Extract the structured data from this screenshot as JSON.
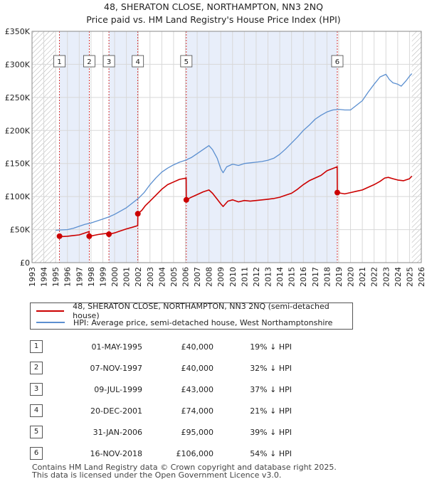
{
  "title_line1": "48, SHERATON CLOSE, NORTHAMPTON, NN3 2NQ",
  "title_line2": "Price paid vs. HM Land Registry's House Price Index (HPI)",
  "colors": {
    "red": "#cc0000",
    "blue": "#5b8fd0",
    "shade": "#e8eefa",
    "grid": "#d8d8d8",
    "hatch": "#b0b0b0"
  },
  "chart_data": {
    "type": "line",
    "x_range": [
      1993,
      2026
    ],
    "y_range": [
      0,
      350000
    ],
    "y_ticks": [
      0,
      50000,
      100000,
      150000,
      200000,
      250000,
      300000,
      350000
    ],
    "y_tick_labels": [
      "£0",
      "£50K",
      "£100K",
      "£150K",
      "£200K",
      "£250K",
      "£300K",
      "£350K"
    ],
    "x_ticks": [
      1993,
      1994,
      1995,
      1996,
      1997,
      1998,
      1999,
      2000,
      2001,
      2002,
      2003,
      2004,
      2005,
      2006,
      2007,
      2008,
      2009,
      2010,
      2011,
      2012,
      2013,
      2014,
      2015,
      2016,
      2017,
      2018,
      2019,
      2020,
      2021,
      2022,
      2023,
      2024,
      2025,
      2026
    ],
    "x_tick_labels": [
      "1993",
      "1994",
      "1995",
      "1996",
      "1997",
      "1998",
      "1999",
      "2000",
      "2001",
      "2002",
      "2003",
      "2004",
      "2005",
      "2006",
      "2007",
      "2008",
      "2009",
      "2010",
      "2011",
      "2012",
      "2013",
      "2014",
      "2015",
      "2016",
      "2017",
      "2018",
      "2019",
      "2020",
      "2021",
      "2022",
      "2023",
      "2024",
      "2025",
      "2026"
    ],
    "data_start": 1995.0,
    "data_end": 2025.2,
    "shaded_spans": [
      [
        1995.33,
        1997.85
      ],
      [
        1999.52,
        2001.97
      ],
      [
        2006.08,
        2018.88
      ]
    ],
    "series": [
      {
        "name": "48, SHERATON CLOSE, NORTHAMPTON, NN3 2NQ (semi-detached house)",
        "color": "red",
        "x": [
          1995.33,
          1995.6,
          1996.0,
          1996.5,
          1997.0,
          1997.5,
          1997.84,
          1997.85,
          1998.2,
          1998.6,
          1999.0,
          1999.3,
          1999.51,
          1999.52,
          2000.0,
          2000.5,
          2001.0,
          2001.5,
          2001.96,
          2001.97,
          2002.3,
          2002.6,
          2003.0,
          2003.5,
          2004.0,
          2004.5,
          2005.0,
          2005.5,
          2006.07,
          2006.08,
          2006.5,
          2007.0,
          2007.5,
          2008.0,
          2008.3,
          2008.7,
          2009.0,
          2009.2,
          2009.6,
          2010.0,
          2010.5,
          2011.0,
          2011.5,
          2012.0,
          2012.5,
          2013.0,
          2013.5,
          2014.0,
          2014.5,
          2015.0,
          2015.5,
          2016.0,
          2016.5,
          2017.0,
          2017.5,
          2018.0,
          2018.87,
          2018.88,
          2019.2,
          2019.5,
          2020.0,
          2020.5,
          2021.0,
          2021.5,
          2022.0,
          2022.5,
          2022.9,
          2023.2,
          2023.6,
          2024.0,
          2024.5,
          2025.0,
          2025.2
        ],
        "y": [
          40000,
          39500,
          40000,
          41000,
          42000,
          45000,
          47000,
          40000,
          41000,
          42500,
          43500,
          44000,
          44500,
          43000,
          45000,
          48000,
          51000,
          53500,
          56000,
          74000,
          79000,
          86000,
          93000,
          102000,
          111000,
          118000,
          122000,
          126000,
          128000,
          95000,
          99000,
          103000,
          107000,
          110000,
          105000,
          96000,
          89000,
          85000,
          93000,
          95000,
          92000,
          94000,
          93000,
          94000,
          95000,
          96000,
          97000,
          99000,
          102000,
          105000,
          111000,
          118000,
          124000,
          128000,
          132000,
          139000,
          145000,
          106000,
          105000,
          104000,
          106000,
          108000,
          110000,
          114000,
          118000,
          123000,
          128000,
          129000,
          127000,
          125000,
          124000,
          127000,
          131000
        ]
      },
      {
        "name": "HPI: Average price, semi-detached house, West Northamptonshire",
        "color": "blue",
        "x": [
          1995.0,
          1995.5,
          1996.0,
          1996.5,
          1997.0,
          1997.5,
          1998.0,
          1998.5,
          1999.0,
          1999.5,
          2000.0,
          2000.5,
          2001.0,
          2001.5,
          2002.0,
          2002.5,
          2003.0,
          2003.5,
          2004.0,
          2004.5,
          2005.0,
          2005.5,
          2006.0,
          2006.5,
          2007.0,
          2007.5,
          2008.0,
          2008.3,
          2008.7,
          2009.0,
          2009.2,
          2009.5,
          2010.0,
          2010.5,
          2011.0,
          2011.5,
          2012.0,
          2012.5,
          2013.0,
          2013.5,
          2014.0,
          2014.5,
          2015.0,
          2015.5,
          2016.0,
          2016.5,
          2017.0,
          2017.5,
          2018.0,
          2018.5,
          2019.0,
          2019.5,
          2020.0,
          2020.5,
          2021.0,
          2021.5,
          2022.0,
          2022.5,
          2023.0,
          2023.3,
          2023.6,
          2024.0,
          2024.3,
          2024.7,
          2025.0,
          2025.2
        ],
        "y": [
          49000,
          49500,
          50000,
          52000,
          55000,
          58000,
          60000,
          63000,
          66000,
          69000,
          73000,
          78000,
          83000,
          90000,
          97000,
          106000,
          118000,
          128000,
          137000,
          143000,
          148000,
          152000,
          155000,
          159000,
          165000,
          171000,
          177000,
          171000,
          158000,
          142000,
          136000,
          145000,
          149000,
          147000,
          150000,
          151000,
          152000,
          153000,
          155000,
          158000,
          164000,
          172000,
          181000,
          190000,
          200000,
          208000,
          217000,
          223000,
          228000,
          231000,
          232000,
          231000,
          231000,
          238000,
          245000,
          258000,
          270000,
          281000,
          285000,
          277000,
          272000,
          270000,
          267000,
          275000,
          282000,
          286000
        ]
      }
    ]
  },
  "markers": [
    {
      "num": "1",
      "x": 1995.33,
      "y": 40000
    },
    {
      "num": "2",
      "x": 1997.85,
      "y": 40000
    },
    {
      "num": "3",
      "x": 1999.52,
      "y": 43000
    },
    {
      "num": "4",
      "x": 2001.97,
      "y": 74000
    },
    {
      "num": "5",
      "x": 2006.08,
      "y": 95000
    },
    {
      "num": "6",
      "x": 2018.88,
      "y": 106000
    }
  ],
  "legend": {
    "red_label": "48, SHERATON CLOSE, NORTHAMPTON, NN3 2NQ (semi-detached house)",
    "blue_label": "HPI: Average price, semi-detached house, West Northamptonshire"
  },
  "transactions": [
    {
      "num": "1",
      "date": "01-MAY-1995",
      "price": "£40,000",
      "diff": "19% ↓ HPI"
    },
    {
      "num": "2",
      "date": "07-NOV-1997",
      "price": "£40,000",
      "diff": "32% ↓ HPI"
    },
    {
      "num": "3",
      "date": "09-JUL-1999",
      "price": "£43,000",
      "diff": "37% ↓ HPI"
    },
    {
      "num": "4",
      "date": "20-DEC-2001",
      "price": "£74,000",
      "diff": "21% ↓ HPI"
    },
    {
      "num": "5",
      "date": "31-JAN-2006",
      "price": "£95,000",
      "diff": "39% ↓ HPI"
    },
    {
      "num": "6",
      "date": "16-NOV-2018",
      "price": "£106,000",
      "diff": "54% ↓ HPI"
    }
  ],
  "footer_line1": "Contains HM Land Registry data © Crown copyright and database right 2025.",
  "footer_line2": "This data is licensed under the Open Government Licence v3.0."
}
